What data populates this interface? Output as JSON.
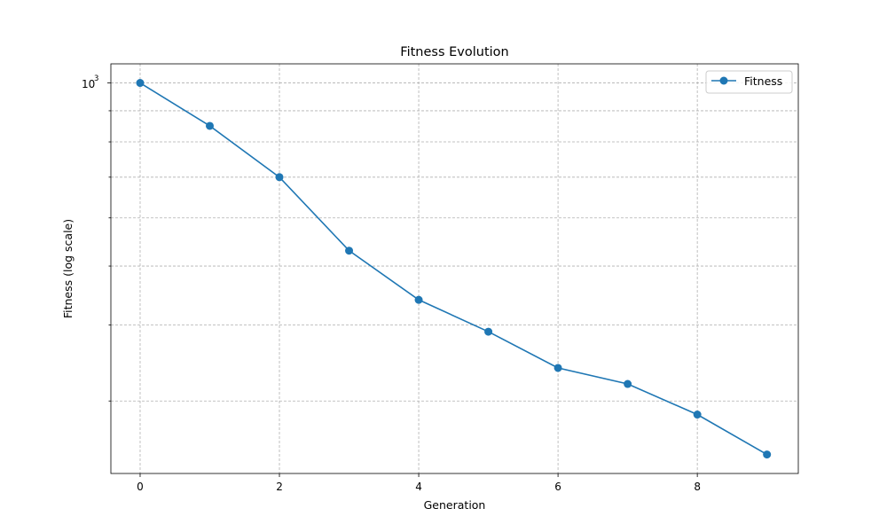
{
  "chart_data": {
    "type": "line",
    "title": "Fitness Evolution",
    "xlabel": "Generation",
    "ylabel": "Fitness (log scale)",
    "x": [
      0,
      1,
      2,
      3,
      4,
      5,
      6,
      7,
      8,
      9
    ],
    "series": [
      {
        "name": "Fitness",
        "color": "#1f77b4",
        "marker": "circle",
        "values": [
          1000,
          850,
          700,
          530,
          440,
          390,
          340,
          320,
          285,
          245
        ]
      }
    ],
    "xlim": [
      -0.42,
      9.45
    ],
    "ylim": [
      228,
      1075
    ],
    "yscale": "log",
    "xticks": [
      0,
      2,
      4,
      6,
      8
    ],
    "xtick_labels": [
      "0",
      "2",
      "4",
      "6",
      "8"
    ],
    "yticks_major": [
      1000
    ],
    "ytick_major_labels": [
      "10",
      "3"
    ],
    "yticks_minor": [
      300,
      400,
      500,
      600,
      700,
      800,
      900
    ],
    "grid": true,
    "legend": {
      "position": "top-right",
      "entries": [
        "Fitness"
      ]
    }
  }
}
